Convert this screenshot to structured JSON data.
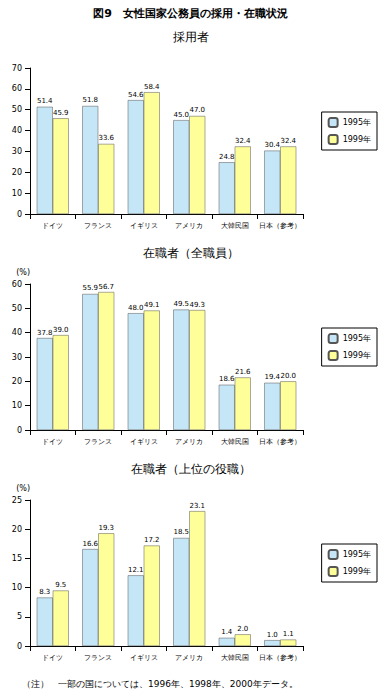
{
  "title": "図9　女性国家公務員の採用・在職状況",
  "note": "（注）　一部の国については、1996年、1998年、2000年データ。",
  "chart_data": [
    {
      "type": "bar",
      "title": "採用者",
      "categories": [
        "ドイツ",
        "フランス",
        "イギリス",
        "アメリカ",
        "大韓民国",
        "日本（参考）"
      ],
      "series": [
        {
          "name": "1995年",
          "color": "#c5e6f7",
          "values": [
            51.4,
            51.8,
            54.6,
            45.0,
            24.8,
            30.4
          ],
          "value_labels": [
            "51.4",
            "51.8",
            "54.6",
            "45.0",
            "24.8",
            "30.4"
          ]
        },
        {
          "name": "1999年",
          "color": "#ffff99",
          "values": [
            45.9,
            33.6,
            58.4,
            47.0,
            32.4,
            32.4
          ],
          "value_labels": [
            "45.9",
            "33.6",
            "58.4",
            "47.0",
            "32.4",
            "32.4"
          ]
        }
      ],
      "ylim": [
        0,
        70
      ],
      "yticks": [
        0,
        10,
        20,
        30,
        40,
        50,
        60,
        70
      ],
      "grid": false,
      "legend": "right",
      "data_labels": true
    },
    {
      "type": "bar",
      "title": "在職者（全職員）",
      "y_label": "(%)",
      "categories": [
        "ドイツ",
        "フランス",
        "イギリス",
        "アメリカ",
        "大韓民国",
        "日本（参考）"
      ],
      "series": [
        {
          "name": "1995年",
          "color": "#c5e6f7",
          "values": [
            37.8,
            55.9,
            48.0,
            49.5,
            18.6,
            19.4
          ],
          "value_labels": [
            "37.8",
            "55.9",
            "48.0",
            "49.5",
            "18.6",
            "19.4"
          ]
        },
        {
          "name": "1999年",
          "color": "#ffff99",
          "values": [
            39.0,
            56.7,
            49.1,
            49.3,
            21.6,
            20.0
          ],
          "value_labels": [
            "39.0",
            "56.7",
            "49.1",
            "49.3",
            "21.6",
            "20.0"
          ]
        }
      ],
      "ylim": [
        0,
        60
      ],
      "yticks": [
        0,
        10,
        20,
        30,
        40,
        50,
        60
      ],
      "grid": false,
      "legend": "right",
      "data_labels": true
    },
    {
      "type": "bar",
      "title": "在職者（上位の役職）",
      "y_label": "(%)",
      "categories": [
        "ドイツ",
        "フランス",
        "イギリス",
        "アメリカ",
        "大韓民国",
        "日本（参考）"
      ],
      "series": [
        {
          "name": "1995年",
          "color": "#c5e6f7",
          "values": [
            8.3,
            16.6,
            12.1,
            18.5,
            1.4,
            1.0
          ],
          "value_labels": [
            "8.3",
            "16.6",
            "12.1",
            "18.5",
            "1.4",
            "1.0"
          ]
        },
        {
          "name": "1999年",
          "color": "#ffff99",
          "values": [
            9.5,
            19.3,
            17.2,
            23.1,
            2.0,
            1.1
          ],
          "value_labels": [
            "9.5",
            "19.3",
            "17.2",
            "23.1",
            "2.0",
            "1.1"
          ]
        }
      ],
      "ylim": [
        0,
        25
      ],
      "yticks": [
        0,
        5,
        10,
        15,
        20,
        25
      ],
      "grid": false,
      "legend": "right",
      "data_labels": true
    }
  ]
}
